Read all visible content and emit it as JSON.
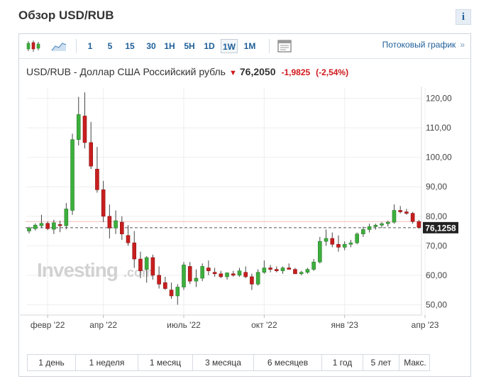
{
  "header": {
    "title": "Обзор USD/RUB",
    "info_label": "i"
  },
  "toolbar": {
    "chart_types": [
      "candlestick-icon",
      "area-chart-icon"
    ],
    "timeframes": [
      {
        "label": "1",
        "active": false
      },
      {
        "label": "5",
        "active": false
      },
      {
        "label": "15",
        "active": false
      },
      {
        "label": "30",
        "active": false
      },
      {
        "label": "1H",
        "active": false
      },
      {
        "label": "5H",
        "active": false
      },
      {
        "label": "1D",
        "active": false
      },
      {
        "label": "1W",
        "active": true
      },
      {
        "label": "1M",
        "active": false
      }
    ],
    "settings_icon": "panel-icon",
    "stream_label": "Потоковый график",
    "stream_arrow": "»"
  },
  "quote": {
    "name": "USD/RUB - Доллар США Российский рубль",
    "last": "76,2050",
    "change": "-1,9825",
    "change_pct": "(-2,54%)"
  },
  "colors": {
    "up": "#3caf3c",
    "down": "#c81e1e",
    "accent": "#1f5f9a",
    "price_tag": "#222222"
  },
  "chart_data": {
    "type": "candlestick",
    "x_labels": [
      "февр '22",
      "апр '22",
      "июль '22",
      "окт '22",
      "янв '23",
      "апр '23"
    ],
    "x_label_weeks": [
      3,
      12,
      25,
      38,
      51,
      64
    ],
    "y_ticks": [
      "120,00",
      "110,00",
      "100,00",
      "90,00",
      "80,00",
      "70,00",
      "60,00",
      "50,00"
    ],
    "y_tick_values": [
      120,
      110,
      100,
      90,
      80,
      70,
      60,
      50
    ],
    "ylim": [
      46.5,
      123.5
    ],
    "last_price_label": "76,1258",
    "last_price": 76.13,
    "reference_line": 78.2,
    "watermark": "Investing",
    "watermark_suffix": ".com",
    "candles": [
      [
        75.0,
        76.5,
        74.2,
        76.0
      ],
      [
        75.8,
        77.6,
        75.2,
        77.0
      ],
      [
        76.8,
        80.5,
        76.0,
        77.6
      ],
      [
        77.6,
        78.2,
        75.3,
        75.8
      ],
      [
        75.6,
        78.8,
        74.0,
        77.8
      ],
      [
        77.2,
        78.5,
        74.6,
        76.8
      ],
      [
        76.8,
        84.5,
        75.6,
        82.5
      ],
      [
        82.0,
        108.0,
        80.5,
        106.0
      ],
      [
        106.0,
        120.5,
        104.0,
        114.5
      ],
      [
        114.0,
        122.0,
        103.0,
        105.0
      ],
      [
        105.0,
        112.0,
        96.0,
        97.0
      ],
      [
        96.0,
        103.5,
        88.0,
        89.0
      ],
      [
        89.0,
        92.0,
        78.0,
        80.0
      ],
      [
        80.0,
        84.0,
        72.5,
        76.0
      ],
      [
        76.0,
        82.0,
        74.0,
        78.5
      ],
      [
        78.0,
        80.0,
        72.0,
        74.0
      ],
      [
        73.5,
        77.0,
        70.0,
        71.0
      ],
      [
        71.0,
        75.0,
        62.5,
        65.5
      ],
      [
        65.5,
        68.0,
        59.0,
        61.5
      ],
      [
        62.0,
        66.5,
        57.5,
        66.0
      ],
      [
        66.0,
        67.0,
        58.5,
        60.0
      ],
      [
        60.0,
        63.0,
        55.5,
        57.0
      ],
      [
        57.5,
        59.5,
        55.0,
        55.5
      ],
      [
        55.0,
        57.5,
        52.0,
        53.0
      ],
      [
        53.0,
        57.0,
        50.0,
        56.0
      ],
      [
        56.0,
        64.5,
        55.0,
        63.5
      ],
      [
        63.0,
        64.5,
        57.0,
        58.0
      ],
      [
        58.0,
        62.0,
        56.0,
        59.0
      ],
      [
        59.0,
        64.0,
        58.0,
        63.0
      ],
      [
        62.5,
        65.0,
        60.0,
        61.5
      ],
      [
        61.0,
        62.5,
        59.5,
        60.5
      ],
      [
        60.5,
        61.5,
        59.0,
        59.5
      ],
      [
        59.5,
        61.0,
        58.5,
        60.8
      ],
      [
        60.5,
        61.5,
        59.5,
        60.0
      ],
      [
        60.0,
        62.5,
        59.5,
        61.5
      ],
      [
        61.0,
        63.0,
        59.0,
        59.5
      ],
      [
        59.5,
        60.5,
        55.0,
        57.0
      ],
      [
        57.0,
        62.0,
        56.5,
        61.0
      ],
      [
        61.0,
        65.0,
        60.5,
        62.5
      ],
      [
        62.5,
        63.5,
        61.0,
        62.0
      ],
      [
        62.0,
        63.0,
        61.0,
        61.5
      ],
      [
        61.5,
        63.0,
        60.5,
        62.5
      ],
      [
        62.5,
        64.0,
        62.0,
        62.0
      ],
      [
        62.0,
        62.5,
        60.5,
        60.5
      ],
      [
        60.5,
        61.5,
        60.0,
        61.0
      ],
      [
        61.0,
        62.5,
        60.5,
        62.0
      ],
      [
        62.0,
        65.5,
        61.5,
        64.5
      ],
      [
        64.5,
        73.0,
        64.0,
        71.5
      ],
      [
        71.5,
        75.5,
        70.0,
        72.5
      ],
      [
        72.5,
        74.5,
        69.5,
        70.5
      ],
      [
        70.5,
        73.5,
        68.0,
        69.5
      ],
      [
        69.5,
        71.5,
        68.5,
        70.5
      ],
      [
        70.5,
        72.0,
        69.5,
        71.0
      ],
      [
        71.0,
        74.5,
        70.5,
        74.0
      ],
      [
        74.0,
        76.5,
        73.0,
        75.5
      ],
      [
        75.5,
        77.5,
        74.5,
        76.5
      ],
      [
        76.5,
        77.5,
        75.5,
        77.0
      ],
      [
        77.0,
        78.0,
        76.0,
        77.5
      ],
      [
        77.5,
        78.5,
        76.5,
        78.0
      ],
      [
        78.0,
        84.0,
        77.5,
        82.0
      ],
      [
        82.0,
        83.5,
        81.0,
        81.5
      ],
      [
        81.5,
        82.5,
        80.5,
        81.0
      ],
      [
        81.0,
        81.5,
        77.5,
        78.2
      ],
      [
        78.2,
        78.8,
        75.8,
        76.2
      ]
    ]
  },
  "ranges": [
    {
      "label": "1 день",
      "width": 68
    },
    {
      "label": "1 неделя",
      "width": 88
    },
    {
      "label": "1 месяц",
      "width": 77
    },
    {
      "label": "3 месяца",
      "width": 86
    },
    {
      "label": "6 месяцев",
      "width": 96
    },
    {
      "label": "1 год",
      "width": 58
    },
    {
      "label": "5 лет",
      "width": 51
    },
    {
      "label": "Макс.",
      "width": 44
    }
  ]
}
